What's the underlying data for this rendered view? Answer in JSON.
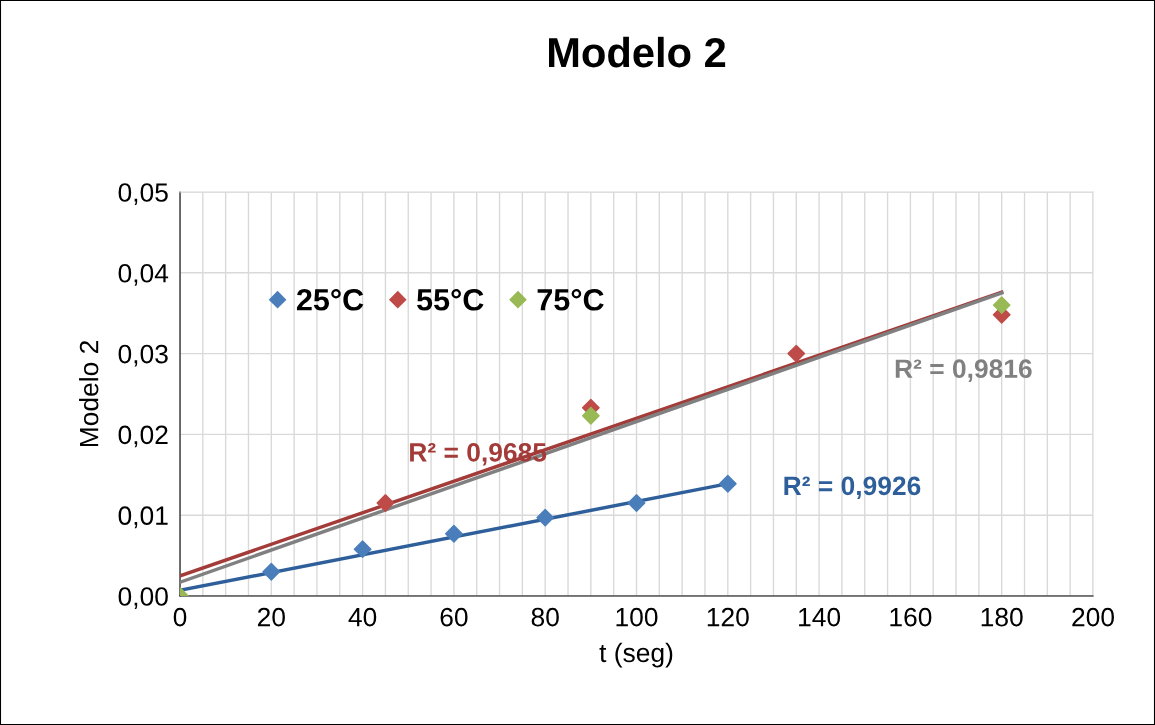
{
  "chart_data": {
    "type": "scatter",
    "title": "Modelo 2",
    "xlabel": "t (seg)",
    "ylabel": "Modelo 2",
    "xlim": [
      0,
      200
    ],
    "ylim": [
      0,
      0.05
    ],
    "xticks": [
      0,
      {
        "value": 5,
        "label": null
      },
      {
        "value": 10,
        "label": null
      },
      {
        "value": 15,
        "label": null
      },
      20,
      {
        "value": 25,
        "label": null
      },
      {
        "value": 30,
        "label": null
      },
      {
        "value": 35,
        "label": null
      },
      40,
      {
        "value": 45,
        "label": null
      },
      {
        "value": 50,
        "label": null
      },
      {
        "value": 55,
        "label": null
      },
      60,
      {
        "value": 65,
        "label": null
      },
      {
        "value": 70,
        "label": null
      },
      {
        "value": 75,
        "label": null
      },
      80,
      {
        "value": 85,
        "label": null
      },
      {
        "value": 90,
        "label": null
      },
      {
        "value": 95,
        "label": null
      },
      100,
      {
        "value": 105,
        "label": null
      },
      {
        "value": 110,
        "label": null
      },
      {
        "value": 115,
        "label": null
      },
      120,
      {
        "value": 125,
        "label": null
      },
      {
        "value": 130,
        "label": null
      },
      {
        "value": 135,
        "label": null
      },
      140,
      {
        "value": 145,
        "label": null
      },
      {
        "value": 150,
        "label": null
      },
      {
        "value": 155,
        "label": null
      },
      160,
      {
        "value": 165,
        "label": null
      },
      {
        "value": 170,
        "label": null
      },
      {
        "value": 175,
        "label": null
      },
      180,
      {
        "value": 185,
        "label": null
      },
      {
        "value": 190,
        "label": null
      },
      {
        "value": 195,
        "label": null
      },
      200
    ],
    "yticks": [
      {
        "value": 0,
        "label": "0,00"
      },
      {
        "value": 0.01,
        "label": "0,01"
      },
      {
        "value": 0.02,
        "label": "0,02"
      },
      {
        "value": 0.03,
        "label": "0,03"
      },
      {
        "value": 0.04,
        "label": "0,04"
      },
      {
        "value": 0.05,
        "label": "0,05"
      }
    ],
    "grid": true,
    "legend": "top left",
    "marker": "diamond",
    "series": [
      {
        "name": "25°C",
        "color": "#4a7ebb",
        "x": [
          20,
          40,
          60,
          80,
          100,
          120
        ],
        "values": [
          0.003,
          0.0058,
          0.0077,
          0.0097,
          0.0115,
          0.0139
        ]
      },
      {
        "name": "55°C",
        "color": "#be4b48",
        "x": [
          45,
          90,
          135,
          180
        ],
        "values": [
          0.0115,
          0.0233,
          0.03,
          0.0348
        ]
      },
      {
        "name": "75°C",
        "color": "#98b954",
        "x": [
          0,
          90,
          180
        ],
        "values": [
          0,
          0.0223,
          0.036
        ]
      },
      {
        "type": "line",
        "marker": "none",
        "color": "#2e5f9a",
        "x": [
          0,
          120
        ],
        "values": [
          0.0007,
          0.0139
        ]
      },
      {
        "type": "line",
        "marker": "none",
        "color": "#a33b38",
        "x": [
          0,
          180
        ],
        "values": [
          0.0025,
          0.0376
        ]
      },
      {
        "type": "line",
        "marker": "none",
        "color": "#808080",
        "x": [
          0,
          180
        ],
        "values": [
          0.0017,
          0.0375
        ]
      }
    ],
    "annotations": [
      "R² = 0,9926",
      "R² = 0,9685",
      "R² = 0,9816"
    ]
  }
}
